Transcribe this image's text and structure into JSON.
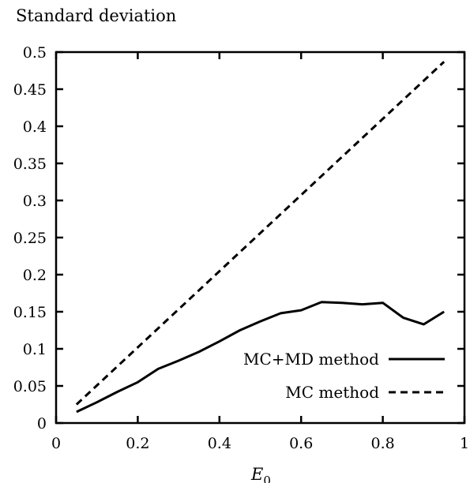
{
  "chart_data": {
    "type": "line",
    "ylabel": "Standard deviation",
    "xlabel_main": "E",
    "xlabel_sub": "0",
    "xlim": [
      0,
      1
    ],
    "ylim": [
      0,
      0.5
    ],
    "xticks": [
      0,
      0.2,
      0.4,
      0.6,
      0.8,
      1
    ],
    "xtick_labels": [
      "0",
      "0.2",
      "0.4",
      "0.6",
      "0.8",
      "1"
    ],
    "yticks": [
      0,
      0.05,
      0.1,
      0.15,
      0.2,
      0.25,
      0.3,
      0.35,
      0.4,
      0.45,
      0.5
    ],
    "ytick_labels": [
      "0",
      "0.05",
      "0.1",
      "0.15",
      "0.2",
      "0.25",
      "0.3",
      "0.35",
      "0.4",
      "0.45",
      "0.5"
    ],
    "grid": false,
    "legend_position": "bottom-right",
    "series": [
      {
        "name": "MC+MD method",
        "line_style": "solid",
        "color": "#000000",
        "x": [
          0.05,
          0.1,
          0.15,
          0.2,
          0.25,
          0.3,
          0.35,
          0.4,
          0.45,
          0.5,
          0.55,
          0.6,
          0.65,
          0.7,
          0.75,
          0.8,
          0.85,
          0.9,
          0.95
        ],
        "y": [
          0.015,
          0.028,
          0.042,
          0.055,
          0.073,
          0.084,
          0.096,
          0.11,
          0.125,
          0.137,
          0.148,
          0.152,
          0.163,
          0.162,
          0.16,
          0.162,
          0.142,
          0.133,
          0.15
        ]
      },
      {
        "name": "MC method",
        "line_style": "dashed",
        "color": "#000000",
        "x": [
          0.05,
          0.95
        ],
        "y": [
          0.025,
          0.487
        ]
      }
    ]
  }
}
